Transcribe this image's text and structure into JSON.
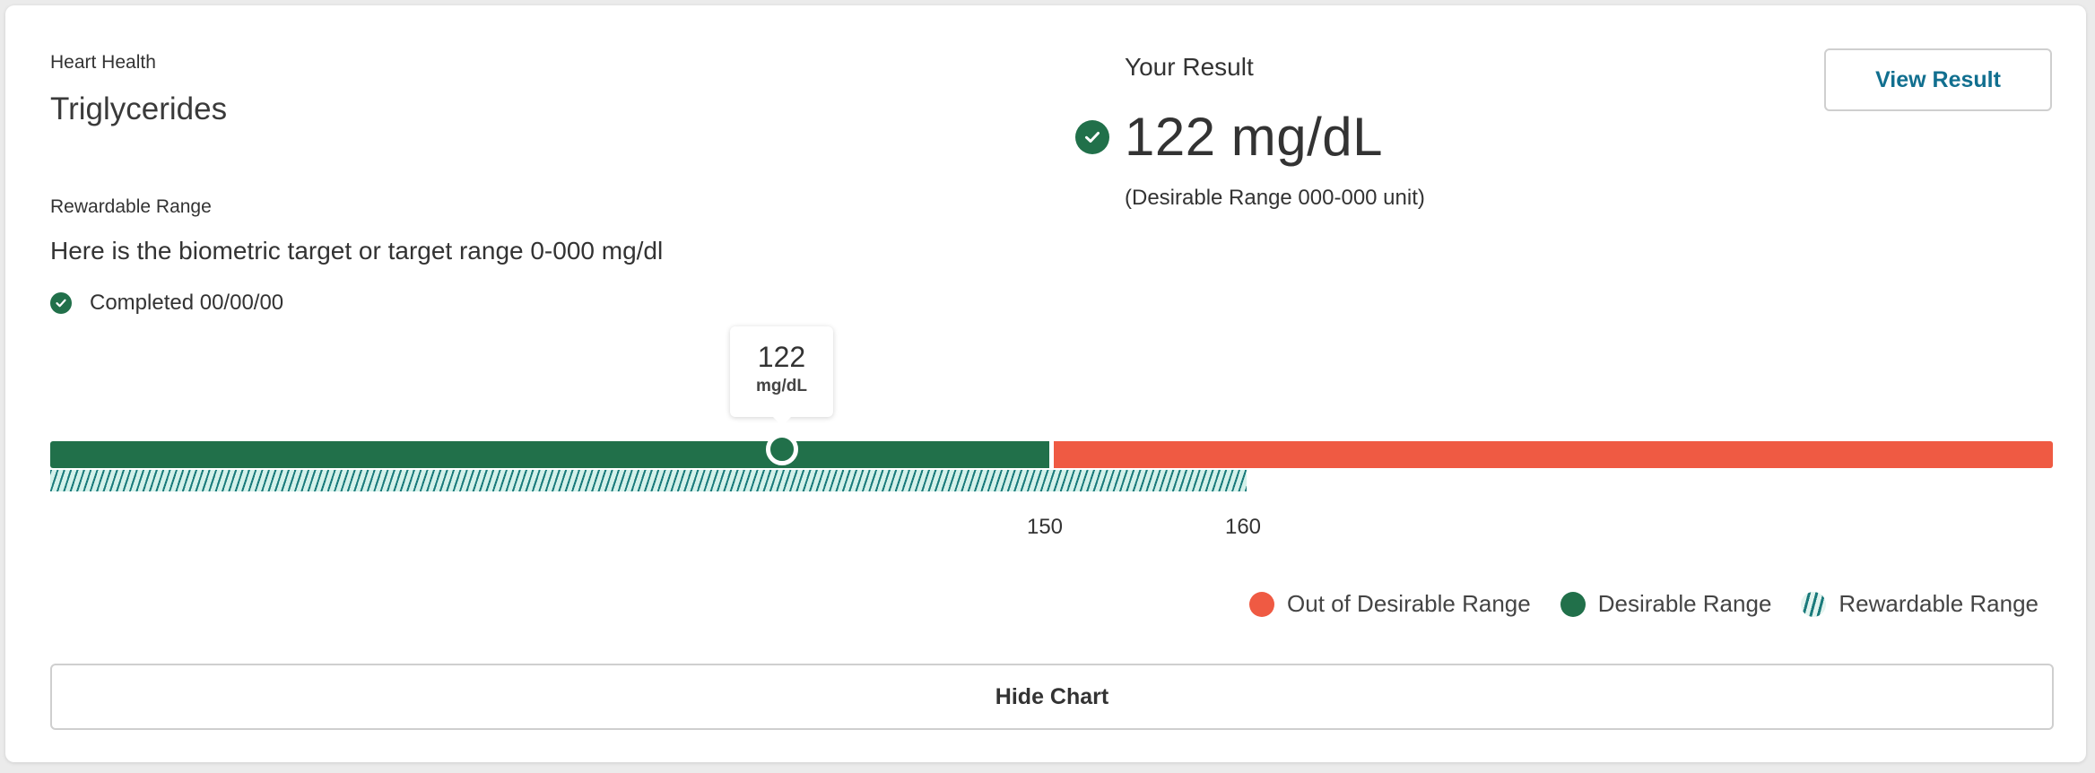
{
  "card": {
    "category": "Heart Health",
    "title": "Triglycerides",
    "rewardable_label": "Rewardable Range",
    "rewardable_desc": "Here is the biometric target or target range 0-000 mg/dl",
    "completed_text": "Completed 00/00/00"
  },
  "result": {
    "heading": "Your Result",
    "value": "122 mg/dL",
    "range_note": "(Desirable Range 000-000 unit)",
    "view_button": "View Result"
  },
  "chart": {
    "tooltip_value": "122",
    "tooltip_unit": "mg/dL",
    "ticks": [
      "150",
      "160"
    ],
    "result_value": 122,
    "desirable_max": 150,
    "rewardable_max": 160,
    "legend": {
      "out": "Out of Desirable Range",
      "desirable": "Desirable Range",
      "rewardable": "Rewardable Range"
    },
    "colors": {
      "desirable": "#21704a",
      "out": "#ef5a43",
      "rewardable": "#1a7a7b"
    }
  },
  "hide_button": "Hide Chart"
}
